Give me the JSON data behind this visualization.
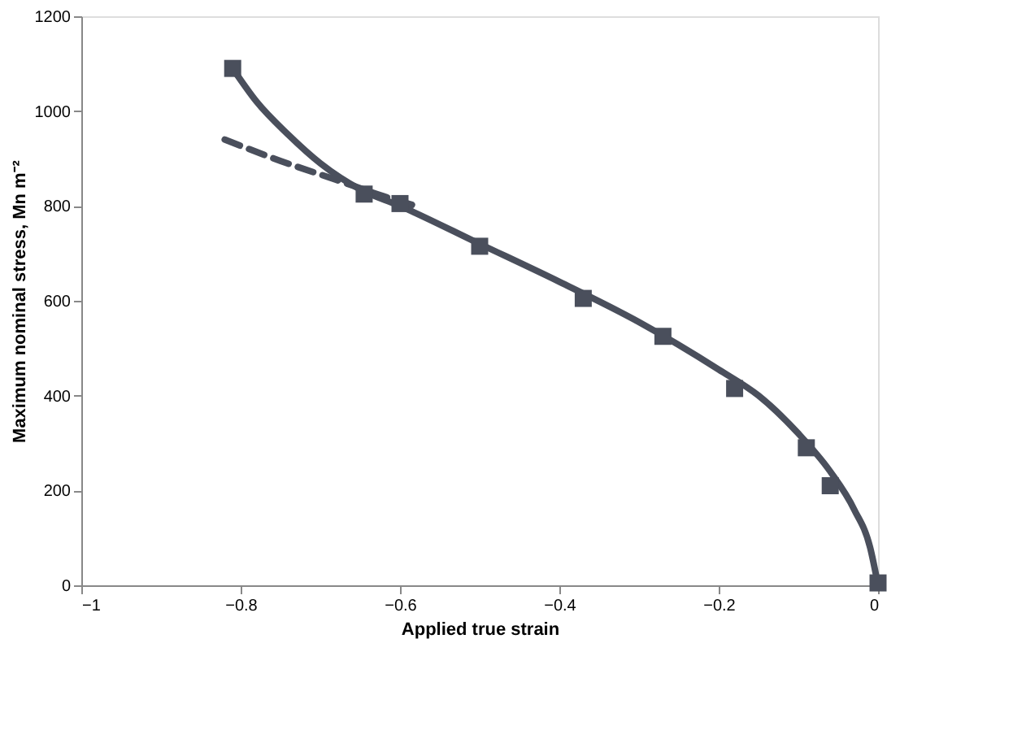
{
  "chart_data": {
    "type": "scatter",
    "xlabel": "Applied true strain",
    "ylabel": "Maximum nominal stress, Mn m⁻²",
    "xlim": [
      -1,
      0
    ],
    "ylim": [
      0,
      1200
    ],
    "xticks": [
      -1,
      -0.8,
      -0.6,
      -0.4,
      -0.2,
      0
    ],
    "yticks": [
      0,
      200,
      400,
      600,
      800,
      1000,
      1200
    ],
    "grid": false,
    "legend": false,
    "series": [
      {
        "type": "line",
        "line_style": "solid",
        "color": "#4a4f5c",
        "x": [
          -0.81,
          -0.78,
          -0.74,
          -0.7,
          -0.65,
          -0.6,
          -0.5,
          -0.4,
          -0.3,
          -0.2,
          -0.15,
          -0.1,
          -0.06,
          -0.03,
          -0.01,
          0
        ],
        "values": [
          1090,
          1020,
          950,
          890,
          835,
          800,
          720,
          640,
          555,
          455,
          400,
          320,
          240,
          160,
          80,
          0
        ]
      },
      {
        "type": "line",
        "line_style": "dashed",
        "color": "#4a4f5c",
        "x": [
          -0.82,
          -0.75,
          -0.68,
          -0.62,
          -0.58
        ],
        "values": [
          940,
          895,
          855,
          820,
          800
        ]
      },
      {
        "marker": "square",
        "color": "#4a4f5c",
        "x": [
          -0.81,
          -0.645,
          -0.6,
          -0.5,
          -0.37,
          -0.27,
          -0.18,
          -0.09,
          -0.06,
          0
        ],
        "values": [
          1090,
          825,
          805,
          715,
          605,
          525,
          415,
          290,
          210,
          5
        ]
      }
    ]
  }
}
